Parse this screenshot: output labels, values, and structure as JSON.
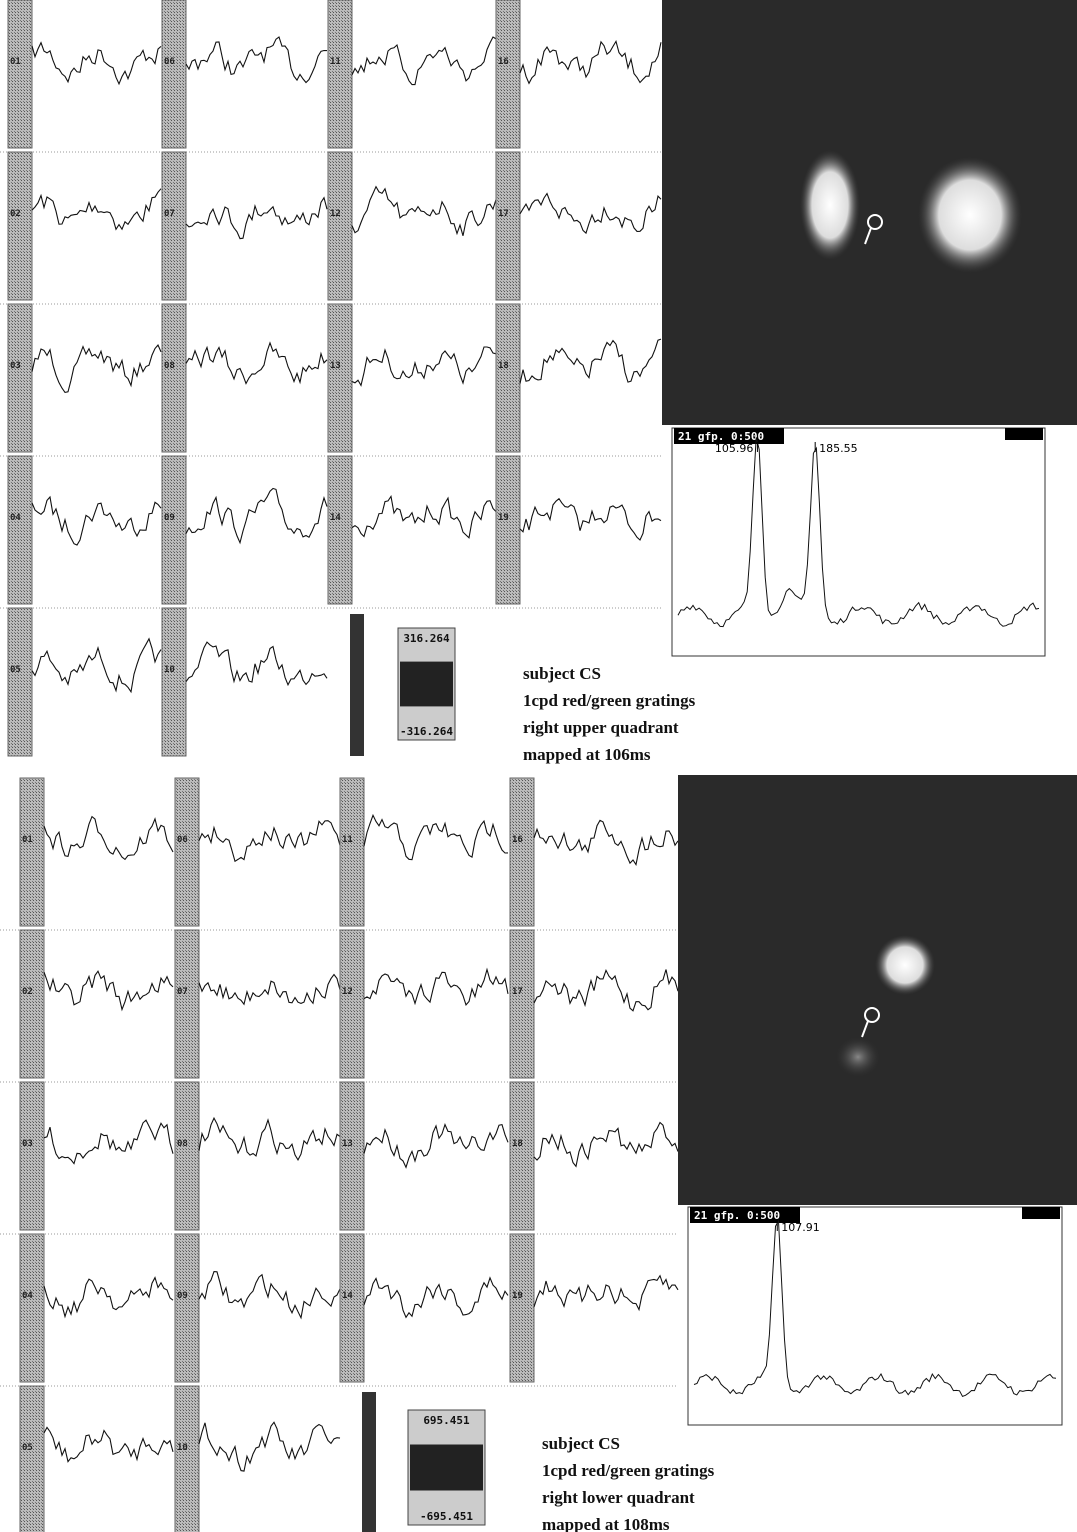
{
  "panels": [
    {
      "channel_labels": [
        [
          "01",
          "02",
          "03",
          "04",
          "05"
        ],
        [
          "06",
          "07",
          "08",
          "09",
          "10"
        ],
        [
          "11",
          "12",
          "13",
          "14"
        ],
        [
          "16",
          "17",
          "18",
          "19"
        ]
      ],
      "gfp_title": "21  gfp. 0:500",
      "peak_labels": [
        "105.96",
        "185.55"
      ],
      "scale_max": "316.264",
      "scale_min": "-316.264",
      "caption": [
        "subject CS",
        "1cpd red/green gratings",
        "right upper quadrant",
        "mapped at 106ms"
      ]
    },
    {
      "channel_labels": [
        [
          "01",
          "02",
          "03",
          "04",
          "05"
        ],
        [
          "06",
          "07",
          "08",
          "09",
          "10"
        ],
        [
          "11",
          "12",
          "13",
          "14"
        ],
        [
          "16",
          "17",
          "18",
          "19"
        ]
      ],
      "gfp_title": "21  gfp. 0:500",
      "peak_labels": [
        "107.91"
      ],
      "scale_max": "695.451",
      "scale_min": "-695.451",
      "caption": [
        "subject CS",
        "1cpd red/green gratings",
        "right lower quadrant",
        "mapped at 108ms"
      ]
    }
  ]
}
